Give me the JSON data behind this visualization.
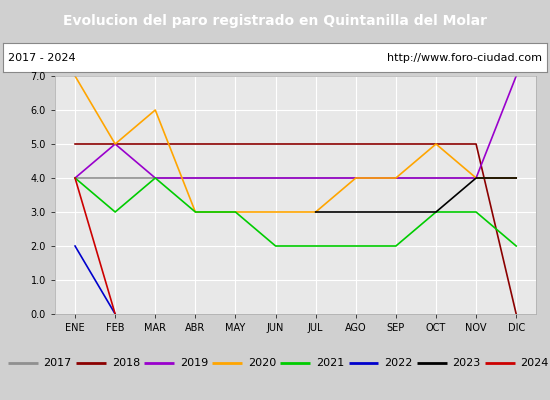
{
  "title": "Evolucion del paro registrado en Quintanilla del Molar",
  "subtitle_left": "2017 - 2024",
  "subtitle_right": "http://www.foro-ciudad.com",
  "title_bg": "#4472c4",
  "title_color": "#ffffff",
  "xlabel_months": [
    "ENE",
    "FEB",
    "MAR",
    "ABR",
    "MAY",
    "JUN",
    "JUL",
    "AGO",
    "SEP",
    "OCT",
    "NOV",
    "DIC"
  ],
  "ylim": [
    0.0,
    7.0
  ],
  "yticks": [
    0.0,
    1.0,
    2.0,
    3.0,
    4.0,
    5.0,
    6.0,
    7.0
  ],
  "series": {
    "2017": {
      "color": "#909090",
      "values": [
        4.0,
        4.0,
        4.0,
        4.0,
        4.0,
        4.0,
        4.0,
        4.0,
        4.0,
        4.0,
        4.0,
        4.0
      ]
    },
    "2018": {
      "color": "#8B0000",
      "values": [
        5.0,
        5.0,
        5.0,
        5.0,
        5.0,
        5.0,
        5.0,
        5.0,
        5.0,
        5.0,
        5.0,
        0.0
      ]
    },
    "2019": {
      "color": "#9900cc",
      "values": [
        4.0,
        5.0,
        4.0,
        4.0,
        4.0,
        4.0,
        4.0,
        4.0,
        4.0,
        4.0,
        4.0,
        7.0
      ]
    },
    "2020": {
      "color": "#ffa500",
      "values": [
        7.0,
        5.0,
        6.0,
        3.0,
        3.0,
        3.0,
        3.0,
        4.0,
        4.0,
        5.0,
        4.0,
        4.0
      ]
    },
    "2021": {
      "color": "#00cc00",
      "values": [
        4.0,
        3.0,
        4.0,
        3.0,
        3.0,
        2.0,
        2.0,
        2.0,
        2.0,
        3.0,
        3.0,
        2.0
      ]
    },
    "2022": {
      "color": "#0000cc",
      "values": [
        2.0,
        0.0,
        null,
        null,
        null,
        null,
        null,
        null,
        null,
        null,
        null,
        null
      ]
    },
    "2023": {
      "color": "#000000",
      "values": [
        null,
        null,
        null,
        null,
        null,
        null,
        3.0,
        3.0,
        3.0,
        3.0,
        4.0,
        4.0
      ]
    },
    "2024": {
      "color": "#cc0000",
      "values": [
        4.0,
        0.0,
        null,
        null,
        null,
        null,
        null,
        null,
        null,
        null,
        null,
        null
      ]
    }
  },
  "legend_order": [
    "2017",
    "2018",
    "2019",
    "2020",
    "2021",
    "2022",
    "2023",
    "2024"
  ],
  "title_fontsize": 10,
  "subtitle_fontsize": 8,
  "tick_fontsize": 7,
  "legend_fontsize": 8,
  "plot_bg": "#e8e8e8",
  "fig_bg": "#d0d0d0",
  "grid_color": "#ffffff",
  "subtitle_bg": "#ffffff",
  "legend_bg": "#e0e0e0"
}
